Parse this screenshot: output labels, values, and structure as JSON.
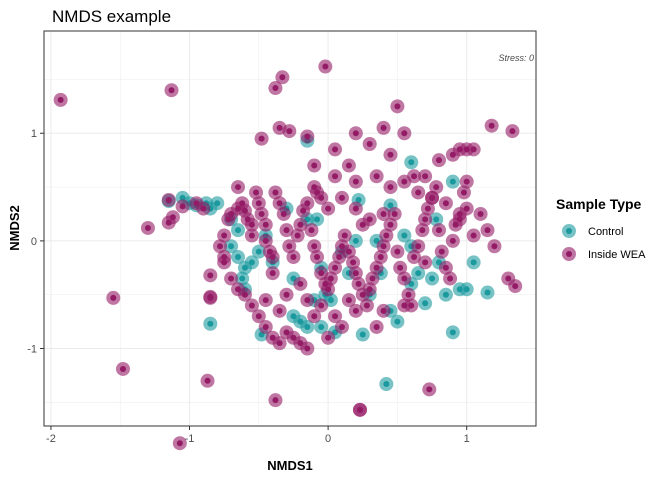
{
  "chart_data": {
    "type": "scatter",
    "title": "NMDS example",
    "xlabel": "NMDS1",
    "ylabel": "NMDS2",
    "xlim": [
      -2.05,
      1.5
    ],
    "ylim": [
      -1.72,
      1.95
    ],
    "xticks": [
      -2,
      -1,
      0,
      1
    ],
    "yticks": [
      -1,
      0,
      1
    ],
    "grid": true,
    "annotation": "Stress: 0",
    "legend": {
      "title": "Sample Type",
      "placement": "right"
    },
    "series": [
      {
        "name": "Control",
        "color": "#1a9a9e",
        "points": [
          [
            -1.15,
            0.37
          ],
          [
            -1.05,
            0.4
          ],
          [
            -1.0,
            0.35
          ],
          [
            -0.95,
            0.33
          ],
          [
            -0.88,
            0.35
          ],
          [
            -0.85,
            0.3
          ],
          [
            -0.8,
            0.35
          ],
          [
            -0.85,
            -0.77
          ],
          [
            -0.7,
            0.2
          ],
          [
            -0.65,
            0.1
          ],
          [
            -0.7,
            -0.05
          ],
          [
            -0.65,
            -0.15
          ],
          [
            -0.6,
            -0.25
          ],
          [
            -0.62,
            -0.35
          ],
          [
            -0.6,
            -0.45
          ],
          [
            -0.55,
            -0.2
          ],
          [
            -0.5,
            -0.1
          ],
          [
            -0.48,
            -0.87
          ],
          [
            -0.45,
            0.05
          ],
          [
            -0.4,
            -0.2
          ],
          [
            -0.3,
            0.3
          ],
          [
            -0.25,
            -0.35
          ],
          [
            -0.25,
            -0.7
          ],
          [
            -0.2,
            -0.75
          ],
          [
            -0.15,
            0.2
          ],
          [
            -0.15,
            -0.8
          ],
          [
            -0.1,
            -0.55
          ],
          [
            -0.08,
            0.2
          ],
          [
            -0.05,
            -0.25
          ],
          [
            -0.05,
            -0.8
          ],
          [
            -0.02,
            -0.5
          ],
          [
            0.02,
            -0.55
          ],
          [
            0.05,
            -0.85
          ],
          [
            -0.15,
            0.93
          ],
          [
            0.1,
            -0.1
          ],
          [
            0.15,
            -0.3
          ],
          [
            0.2,
            0.0
          ],
          [
            0.22,
            0.38
          ],
          [
            0.25,
            -0.87
          ],
          [
            0.3,
            -0.5
          ],
          [
            0.35,
            0.0
          ],
          [
            0.38,
            -0.3
          ],
          [
            0.42,
            -1.33
          ],
          [
            0.45,
            0.33
          ],
          [
            0.45,
            -0.65
          ],
          [
            0.5,
            -0.75
          ],
          [
            0.55,
            0.05
          ],
          [
            0.6,
            -0.05
          ],
          [
            0.6,
            -0.4
          ],
          [
            0.6,
            0.73
          ],
          [
            0.65,
            -0.3
          ],
          [
            0.7,
            -0.58
          ],
          [
            0.75,
            -0.35
          ],
          [
            0.78,
            0.2
          ],
          [
            0.8,
            -0.2
          ],
          [
            0.85,
            -0.5
          ],
          [
            0.9,
            0.55
          ],
          [
            0.95,
            -0.45
          ],
          [
            0.9,
            -0.85
          ],
          [
            1.0,
            -0.45
          ],
          [
            1.05,
            -0.2
          ],
          [
            1.15,
            -0.48
          ]
        ]
      },
      {
        "name": "Inside WEA",
        "color": "#941b66",
        "points": [
          [
            -1.93,
            1.31
          ],
          [
            -1.13,
            1.4
          ],
          [
            -0.33,
            1.52
          ],
          [
            -0.38,
            1.42
          ],
          [
            -0.35,
            1.05
          ],
          [
            -0.02,
            1.62
          ],
          [
            -0.15,
            0.97
          ],
          [
            0.2,
            1.0
          ],
          [
            0.3,
            0.9
          ],
          [
            0.4,
            1.05
          ],
          [
            0.5,
            1.25
          ],
          [
            0.55,
            1.0
          ],
          [
            0.45,
            0.8
          ],
          [
            0.62,
            0.6
          ],
          [
            0.8,
            0.75
          ],
          [
            0.7,
            0.6
          ],
          [
            0.9,
            0.8
          ],
          [
            0.95,
            0.85
          ],
          [
            1.0,
            0.85
          ],
          [
            1.05,
            0.85
          ],
          [
            1.18,
            1.07
          ],
          [
            1.33,
            1.02
          ],
          [
            -0.48,
            0.95
          ],
          [
            -0.28,
            1.02
          ],
          [
            -0.1,
            0.7
          ],
          [
            0.05,
            0.85
          ],
          [
            0.15,
            0.7
          ],
          [
            -0.1,
            0.5
          ],
          [
            -0.05,
            0.4
          ],
          [
            0.05,
            0.6
          ],
          [
            0.2,
            0.55
          ],
          [
            0.35,
            0.6
          ],
          [
            0.45,
            0.5
          ],
          [
            0.55,
            0.55
          ],
          [
            0.65,
            0.45
          ],
          [
            0.75,
            0.4
          ],
          [
            0.85,
            0.35
          ],
          [
            0.95,
            0.2
          ],
          [
            1.0,
            0.3
          ],
          [
            1.1,
            0.25
          ],
          [
            1.05,
            0.05
          ],
          [
            1.15,
            0.1
          ],
          [
            1.2,
            -0.05
          ],
          [
            1.3,
            -0.35
          ],
          [
            1.35,
            -0.42
          ],
          [
            -1.55,
            -0.53
          ],
          [
            -1.48,
            -1.19
          ],
          [
            -1.07,
            -1.88
          ],
          [
            -1.3,
            0.12
          ],
          [
            -0.87,
            -1.3
          ],
          [
            -0.38,
            -1.48
          ],
          [
            0.23,
            -1.57
          ],
          [
            0.23,
            -1.57
          ],
          [
            0.73,
            -1.38
          ],
          [
            -1.15,
            0.38
          ],
          [
            -1.12,
            0.22
          ],
          [
            -1.15,
            0.17
          ],
          [
            -1.05,
            0.32
          ],
          [
            -0.95,
            0.35
          ],
          [
            -0.9,
            0.3
          ],
          [
            -0.85,
            -0.32
          ],
          [
            -0.85,
            -0.52
          ],
          [
            -0.85,
            -0.53
          ],
          [
            -0.78,
            -0.05
          ],
          [
            -0.75,
            0.05
          ],
          [
            -0.75,
            -0.2
          ],
          [
            -0.72,
            0.2
          ],
          [
            -0.7,
            0.25
          ],
          [
            -0.65,
            0.3
          ],
          [
            -0.65,
            0.5
          ],
          [
            -0.62,
            0.35
          ],
          [
            -0.6,
            0.28
          ],
          [
            -0.58,
            0.2
          ],
          [
            -0.55,
            0.15
          ],
          [
            -0.55,
            0.05
          ],
          [
            -0.52,
            0.45
          ],
          [
            -0.5,
            0.35
          ],
          [
            -0.48,
            0.25
          ],
          [
            -0.45,
            0.15
          ],
          [
            -0.45,
            0.0
          ],
          [
            -0.42,
            -0.1
          ],
          [
            -0.4,
            -0.15
          ],
          [
            -0.4,
            -0.3
          ],
          [
            -0.38,
            0.45
          ],
          [
            -0.35,
            0.35
          ],
          [
            -0.32,
            0.25
          ],
          [
            -0.3,
            0.1
          ],
          [
            -0.28,
            -0.05
          ],
          [
            -0.25,
            -0.15
          ],
          [
            -0.22,
            0.05
          ],
          [
            -0.2,
            0.15
          ],
          [
            -0.18,
            0.28
          ],
          [
            -0.15,
            0.35
          ],
          [
            -0.12,
            0.1
          ],
          [
            -0.1,
            -0.05
          ],
          [
            -0.08,
            -0.15
          ],
          [
            -0.05,
            -0.3
          ],
          [
            -0.02,
            -0.4
          ],
          [
            0.0,
            -0.45
          ],
          [
            0.02,
            -0.35
          ],
          [
            0.05,
            -0.25
          ],
          [
            0.08,
            -0.15
          ],
          [
            0.1,
            -0.05
          ],
          [
            0.12,
            0.05
          ],
          [
            0.15,
            -0.1
          ],
          [
            0.18,
            -0.2
          ],
          [
            0.2,
            -0.3
          ],
          [
            0.22,
            -0.4
          ],
          [
            0.25,
            -0.5
          ],
          [
            0.28,
            -0.6
          ],
          [
            0.3,
            -0.45
          ],
          [
            0.32,
            -0.35
          ],
          [
            0.35,
            -0.25
          ],
          [
            0.38,
            -0.15
          ],
          [
            0.4,
            -0.05
          ],
          [
            0.42,
            0.05
          ],
          [
            0.45,
            0.15
          ],
          [
            0.48,
            0.25
          ],
          [
            0.5,
            -0.1
          ],
          [
            0.52,
            -0.25
          ],
          [
            0.55,
            -0.35
          ],
          [
            0.58,
            -0.5
          ],
          [
            0.6,
            -0.6
          ],
          [
            0.62,
            -0.15
          ],
          [
            0.65,
            -0.05
          ],
          [
            0.68,
            0.1
          ],
          [
            0.7,
            0.2
          ],
          [
            0.72,
            0.3
          ],
          [
            0.75,
            0.4
          ],
          [
            0.78,
            0.5
          ],
          [
            0.8,
            0.1
          ],
          [
            0.82,
            -0.1
          ],
          [
            0.85,
            -0.25
          ],
          [
            0.88,
            -0.35
          ],
          [
            0.9,
            0.0
          ],
          [
            0.92,
            0.15
          ],
          [
            0.95,
            0.25
          ],
          [
            0.98,
            0.45
          ],
          [
            1.0,
            0.55
          ],
          [
            -0.6,
            -0.5
          ],
          [
            -0.55,
            -0.6
          ],
          [
            -0.5,
            -0.7
          ],
          [
            -0.45,
            -0.8
          ],
          [
            -0.4,
            -0.9
          ],
          [
            -0.35,
            -0.95
          ],
          [
            -0.3,
            -0.85
          ],
          [
            -0.25,
            -0.9
          ],
          [
            -0.2,
            -0.95
          ],
          [
            -0.15,
            -1.0
          ],
          [
            -0.1,
            -0.7
          ],
          [
            -0.05,
            -0.6
          ],
          [
            0.0,
            -0.9
          ],
          [
            0.05,
            -0.7
          ],
          [
            0.1,
            -0.8
          ],
          [
            0.15,
            -0.55
          ],
          [
            0.2,
            -0.65
          ],
          [
            -0.7,
            -0.35
          ],
          [
            -0.65,
            -0.45
          ],
          [
            -0.75,
            -0.15
          ],
          [
            -0.3,
            -0.5
          ],
          [
            -0.2,
            -0.4
          ],
          [
            -0.15,
            -0.55
          ],
          [
            -0.35,
            -0.65
          ],
          [
            -0.45,
            -0.55
          ],
          [
            0.35,
            -0.8
          ],
          [
            0.4,
            -0.65
          ],
          [
            0.55,
            -0.6
          ],
          [
            0.7,
            -0.2
          ],
          [
            0.4,
            0.25
          ],
          [
            0.3,
            0.2
          ],
          [
            0.25,
            0.15
          ],
          [
            0.2,
            0.3
          ],
          [
            0.1,
            0.4
          ],
          [
            0.0,
            0.3
          ],
          [
            -0.08,
            0.45
          ]
        ]
      }
    ]
  }
}
